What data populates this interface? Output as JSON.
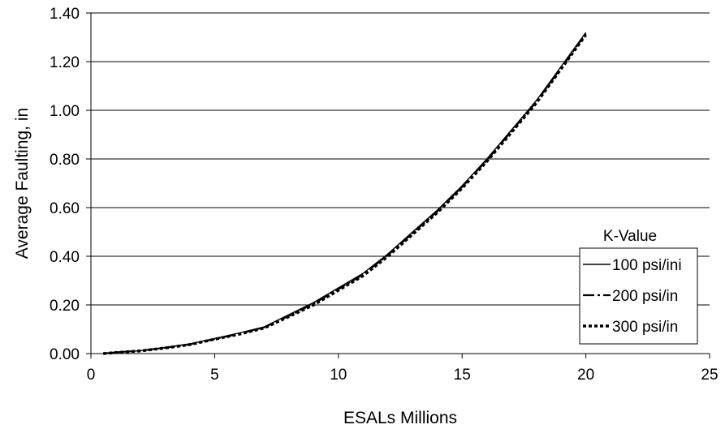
{
  "chart_data": {
    "type": "line",
    "title": "",
    "xlabel": "ESALs Millions",
    "ylabel": "Average Faulting, in",
    "xlim": [
      0,
      25
    ],
    "ylim": [
      0,
      1.4
    ],
    "x_ticks": [
      "0",
      "5",
      "10",
      "15",
      "20",
      "25"
    ],
    "y_ticks": [
      "0.00",
      "0.20",
      "0.40",
      "0.60",
      "0.80",
      "1.00",
      "1.20",
      "1.40"
    ],
    "grid": "horizontal",
    "legend": {
      "title": "K-Value",
      "placement": "bottom-right"
    },
    "series": [
      {
        "name": "100 psi/ini",
        "style": "solid",
        "color": "#000000",
        "x": [
          0.5,
          1,
          2,
          3,
          4,
          5,
          6,
          7,
          8,
          9,
          10,
          11,
          12,
          13,
          14,
          15,
          16,
          17,
          18,
          19,
          20
        ],
        "y": [
          0.0,
          0.005,
          0.012,
          0.025,
          0.04,
          0.062,
          0.085,
          0.11,
          0.16,
          0.21,
          0.27,
          0.33,
          0.41,
          0.5,
          0.59,
          0.69,
          0.8,
          0.92,
          1.04,
          1.18,
          1.32
        ]
      },
      {
        "name": "200 psi/in",
        "style": "dash-dot",
        "color": "#000000",
        "x": [
          0.5,
          1,
          2,
          3,
          4,
          5,
          6,
          7,
          8,
          9,
          10,
          11,
          12,
          13,
          14,
          15,
          16,
          17,
          18,
          19,
          20
        ],
        "y": [
          0.0,
          0.005,
          0.012,
          0.024,
          0.038,
          0.06,
          0.082,
          0.108,
          0.155,
          0.205,
          0.265,
          0.325,
          0.405,
          0.495,
          0.585,
          0.685,
          0.795,
          0.915,
          1.035,
          1.175,
          1.315
        ]
      },
      {
        "name": "300 psi/in",
        "style": "dotted",
        "color": "#000000",
        "x": [
          0.5,
          1,
          2,
          3,
          4,
          5,
          6,
          7,
          8,
          9,
          10,
          11,
          12,
          13,
          14,
          15,
          16,
          17,
          18,
          19,
          20
        ],
        "y": [
          0.0,
          0.004,
          0.011,
          0.023,
          0.037,
          0.059,
          0.08,
          0.105,
          0.152,
          0.2,
          0.26,
          0.32,
          0.4,
          0.49,
          0.58,
          0.68,
          0.79,
          0.91,
          1.03,
          1.17,
          1.31
        ]
      }
    ]
  }
}
